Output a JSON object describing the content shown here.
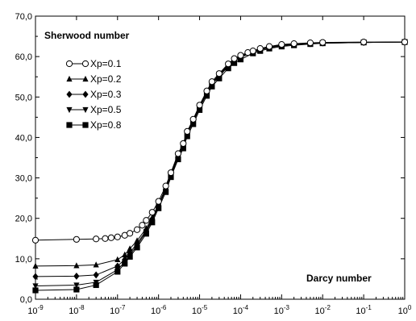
{
  "chart_data": {
    "type": "line",
    "title": "Sherwood number",
    "xlabel": "Darcy number",
    "ylabel": "",
    "x_scale": "log",
    "xlim": [
      1e-09,
      1
    ],
    "ylim": [
      0,
      70
    ],
    "grid": false,
    "legend_position": "top-left",
    "x_ticks": [
      1e-09,
      1e-08,
      1e-07,
      1e-06,
      1e-05,
      0.0001,
      0.001,
      0.01,
      0.1,
      1
    ],
    "x_tick_bases": [
      "10",
      "10",
      "10",
      "10",
      "10",
      "10",
      "10",
      "10",
      "10",
      "10"
    ],
    "x_tick_exponents": [
      "-9",
      "-8",
      "-7",
      "-6",
      "-5",
      "-4",
      "-3",
      "-2",
      "-1",
      "0"
    ],
    "y_ticks": [
      0,
      10,
      20,
      30,
      40,
      50,
      60,
      70
    ],
    "y_tick_labels": [
      "0,0",
      "10,0",
      "20,0",
      "30,0",
      "40,0",
      "50,0",
      "60,0",
      "70,0"
    ],
    "series": [
      {
        "name": "Xp=0.1",
        "marker": "circle-open",
        "x": [
          1e-09,
          1e-08,
          3e-08,
          5e-08,
          7e-08,
          1e-07,
          1.5e-07,
          2e-07,
          3e-07,
          4e-07,
          5e-07,
          7e-07,
          1e-06,
          1.5e-06,
          2e-06,
          3e-06,
          4e-06,
          5e-06,
          7e-06,
          1e-05,
          1.5e-05,
          2e-05,
          3e-05,
          5e-05,
          7e-05,
          0.0001,
          0.00015,
          0.0002,
          0.0003,
          0.0005,
          0.001,
          0.002,
          0.005,
          0.01,
          0.1,
          1
        ],
        "y": [
          14.6,
          14.8,
          14.9,
          15.0,
          15.2,
          15.4,
          15.8,
          16.3,
          17.2,
          18.3,
          19.5,
          21.5,
          24.2,
          28.0,
          31.3,
          36.0,
          38.5,
          41.5,
          44.5,
          48.0,
          51.5,
          53.8,
          55.8,
          58.2,
          59.5,
          60.3,
          61.0,
          61.4,
          62.0,
          62.5,
          63.0,
          63.2,
          63.4,
          63.5,
          63.6,
          63.6
        ]
      },
      {
        "name": "Xp=0.2",
        "marker": "triangle-up",
        "x": [
          1e-09,
          1e-08,
          3e-08,
          1e-07,
          1.5e-07,
          2e-07,
          3e-07,
          5e-07,
          7e-07,
          1e-06,
          1.5e-06,
          2e-06,
          3e-06,
          4e-06,
          5e-06,
          7e-06,
          1e-05,
          1.5e-05,
          2e-05,
          3e-05,
          5e-05,
          7e-05,
          0.0001,
          0.0002,
          0.0003,
          0.0005,
          0.001,
          0.002,
          0.005,
          0.01,
          0.1,
          1
        ],
        "y": [
          8.2,
          8.3,
          8.5,
          9.8,
          11.0,
          12.5,
          14.5,
          17.5,
          20.2,
          23.5,
          27.5,
          31.0,
          35.5,
          38.2,
          41.2,
          44.2,
          47.7,
          51.2,
          53.5,
          55.5,
          58.0,
          59.3,
          60.2,
          61.3,
          61.9,
          62.4,
          62.9,
          63.1,
          63.3,
          63.4,
          63.5,
          63.6
        ]
      },
      {
        "name": "Xp=0.3",
        "marker": "diamond",
        "x": [
          1e-09,
          1e-08,
          3e-08,
          1e-07,
          1.5e-07,
          2e-07,
          3e-07,
          5e-07,
          7e-07,
          1e-06,
          1.5e-06,
          2e-06,
          3e-06,
          4e-06,
          5e-06,
          7e-06,
          1e-05,
          1.5e-05,
          2e-05,
          3e-05,
          5e-05,
          7e-05,
          0.0001,
          0.0002,
          0.0003,
          0.0005,
          0.001,
          0.002,
          0.005,
          0.01,
          0.1,
          1
        ],
        "y": [
          5.6,
          5.7,
          6.0,
          8.2,
          9.8,
          11.5,
          13.8,
          17.0,
          19.8,
          23.2,
          27.2,
          30.8,
          35.3,
          38.0,
          41.0,
          44.0,
          47.5,
          51.0,
          53.3,
          55.3,
          57.8,
          59.1,
          60.0,
          61.2,
          61.8,
          62.3,
          62.8,
          63.0,
          63.2,
          63.4,
          63.5,
          63.6
        ]
      },
      {
        "name": "Xp=0.5",
        "marker": "triangle-down",
        "x": [
          1e-09,
          1e-08,
          3e-08,
          1e-07,
          1.5e-07,
          2e-07,
          3e-07,
          5e-07,
          7e-07,
          1e-06,
          1.5e-06,
          2e-06,
          3e-06,
          4e-06,
          5e-06,
          7e-06,
          1e-05,
          1.5e-05,
          2e-05,
          3e-05,
          5e-05,
          7e-05,
          0.0001,
          0.0002,
          0.0003,
          0.0005,
          0.001,
          0.002,
          0.005,
          0.01,
          0.1,
          1
        ],
        "y": [
          3.3,
          3.5,
          4.2,
          7.3,
          9.2,
          11.0,
          13.3,
          16.7,
          19.5,
          23.0,
          27.0,
          30.6,
          35.1,
          37.8,
          40.8,
          43.8,
          47.3,
          50.8,
          53.1,
          55.1,
          57.6,
          58.9,
          59.8,
          61.1,
          61.7,
          62.2,
          62.7,
          63.0,
          63.2,
          63.3,
          63.5,
          63.6
        ]
      },
      {
        "name": "Xp=0.8",
        "marker": "square",
        "x": [
          1e-09,
          1e-08,
          3e-08,
          1e-07,
          1.5e-07,
          2e-07,
          3e-07,
          5e-07,
          7e-07,
          1e-06,
          1.5e-06,
          2e-06,
          3e-06,
          4e-06,
          5e-06,
          7e-06,
          1e-05,
          1.5e-05,
          2e-05,
          3e-05,
          5e-05,
          7e-05,
          0.0001,
          0.0002,
          0.0003,
          0.0005,
          0.001,
          0.002,
          0.005,
          0.01,
          0.1,
          1
        ],
        "y": [
          2.2,
          2.4,
          3.5,
          6.8,
          8.8,
          10.5,
          12.8,
          16.2,
          19.0,
          22.5,
          26.5,
          30.2,
          34.6,
          37.3,
          40.3,
          43.3,
          46.8,
          50.3,
          52.6,
          54.6,
          57.1,
          58.4,
          59.3,
          60.8,
          61.4,
          62.0,
          62.5,
          62.8,
          63.1,
          63.3,
          63.5,
          63.6
        ]
      }
    ]
  }
}
